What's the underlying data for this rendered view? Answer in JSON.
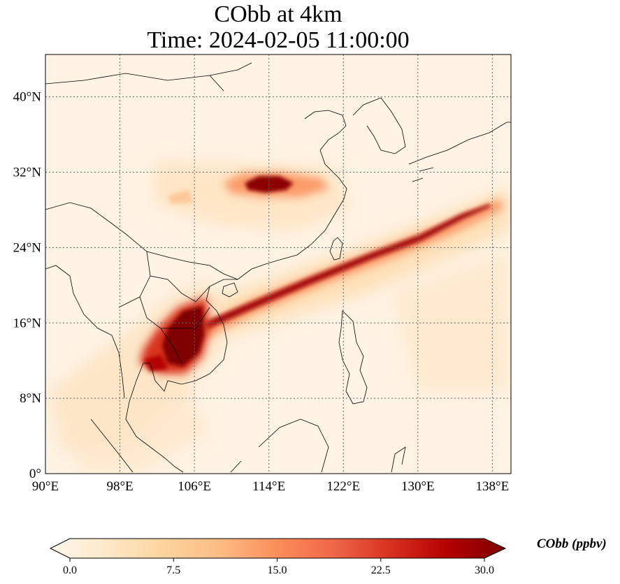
{
  "chart_data": {
    "type": "heatmap",
    "title": "CObb at 4km",
    "subtitle": "Time: 2024-02-05 11:00:00",
    "x_ticks": [
      "90°E",
      "98°E",
      "106°E",
      "114°E",
      "122°E",
      "130°E",
      "138°E"
    ],
    "y_ticks": [
      "0°",
      "8°N",
      "16°N",
      "24°N",
      "32°N",
      "40°N"
    ],
    "xlim": [
      90,
      140
    ],
    "ylim": [
      0,
      44.5
    ],
    "lon_ticks": [
      90,
      98,
      106,
      114,
      122,
      130,
      138
    ],
    "lat_ticks": [
      0,
      8,
      16,
      24,
      32,
      40
    ],
    "grid": true,
    "colormap": "OrRd",
    "colorbar": {
      "label": "CObb (ppbv)",
      "min": 0.0,
      "max": 30.0,
      "extend": "both",
      "ticks": [
        "0.0",
        "7.5",
        "15.0",
        "22.5",
        "30.0"
      ],
      "tick_values": [
        0,
        7.5,
        15,
        22.5,
        30
      ],
      "colors": [
        "#fff7ec",
        "#fee8c8",
        "#fdd49e",
        "#fdbb84",
        "#fc8d59",
        "#ef6548",
        "#d7301f",
        "#b30000",
        "#7f0000"
      ]
    },
    "features": [
      {
        "name": "Northern Indochina plume",
        "lon": 105.5,
        "lat": 14.5,
        "value": 30
      },
      {
        "name": "Transport band toward western Pacific",
        "lon_range": [
          107,
          138
        ],
        "lat_range": [
          16,
          30
        ],
        "value": 25
      },
      {
        "name": "Central China plume",
        "lon": 113,
        "lat": 31,
        "value": 28
      }
    ]
  }
}
